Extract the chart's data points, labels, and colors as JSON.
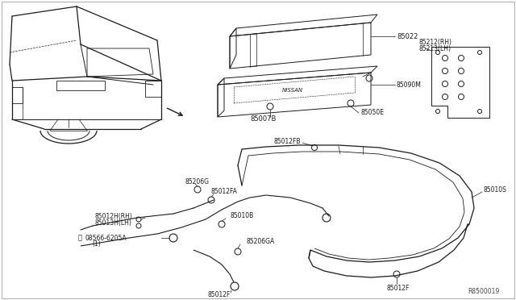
{
  "bg_color": "#ffffff",
  "line_color": "#1a1a1a",
  "fig_width": 6.4,
  "fig_height": 3.72,
  "dpi": 100,
  "watermark": "R8500019",
  "labels": {
    "beam": "85022",
    "bumper_back": "85007B",
    "absorber": "85090M",
    "clip_e": "85050E",
    "bracket_rh": "85212(RH)",
    "bracket_lh": "85213(LH)",
    "clip_fb": "85012FB",
    "bumper_main": "85010S",
    "clip_g": "85206G",
    "clip_fa": "85012FA",
    "clip_b": "85010B",
    "wire_rh": "85012H(RH)",
    "wire_lh": "85013H(LH)",
    "bolt": "08566-6205A",
    "bolt_qty": "(1)",
    "clip_ga": "85206GA",
    "clip_f1": "85012F",
    "clip_f2": "85012F"
  }
}
